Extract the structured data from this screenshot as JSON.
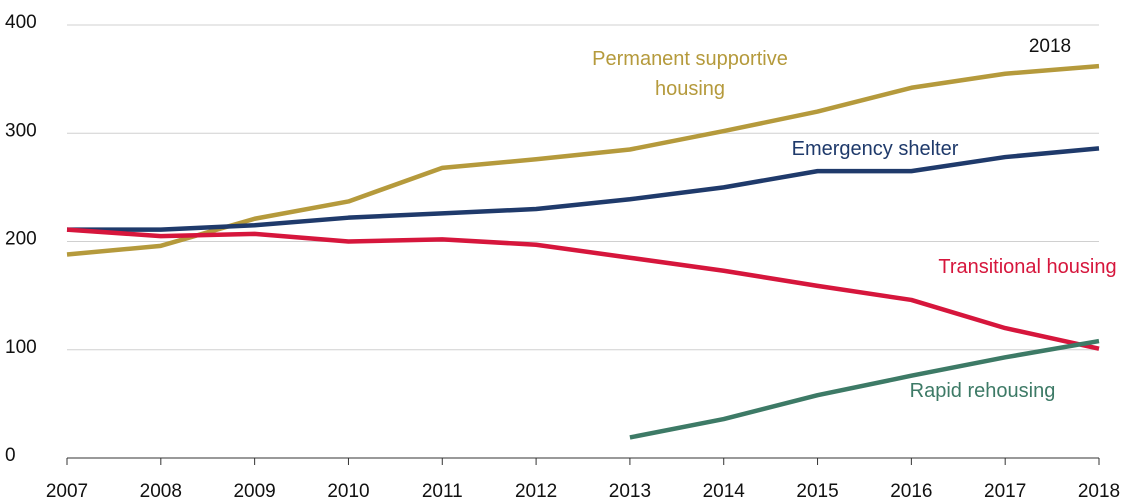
{
  "chart_data": {
    "type": "line",
    "x": [
      2007,
      2008,
      2009,
      2010,
      2011,
      2012,
      2013,
      2014,
      2015,
      2016,
      2017,
      2018
    ],
    "xlim": [
      2007,
      2018
    ],
    "xticks": [
      2007,
      2008,
      2009,
      2010,
      2011,
      2012,
      2013,
      2014,
      2015,
      2016,
      2017,
      2018
    ],
    "ylim": [
      0,
      400
    ],
    "yticks": [
      0,
      100,
      200,
      300,
      400
    ],
    "grid": true,
    "annotations": [
      "2018"
    ],
    "series": [
      {
        "name": "Permanent supportive housing",
        "color": "#b59a3c",
        "values": [
          188,
          196,
          221,
          237,
          268,
          276,
          285,
          302,
          320,
          342,
          355,
          362
        ]
      },
      {
        "name": "Emergency shelter",
        "color": "#1f3a6b",
        "values": [
          211,
          211,
          215,
          222,
          226,
          230,
          239,
          250,
          265,
          265,
          278,
          286
        ]
      },
      {
        "name": "Transitional housing",
        "color": "#d6163c",
        "values": [
          211,
          205,
          207,
          200,
          202,
          197,
          185,
          173,
          159,
          146,
          120,
          101
        ]
      },
      {
        "name": "Rapid rehousing",
        "color": "#3d7a66",
        "values": [
          null,
          null,
          null,
          null,
          null,
          null,
          19,
          36,
          58,
          76,
          93,
          108
        ]
      }
    ]
  }
}
